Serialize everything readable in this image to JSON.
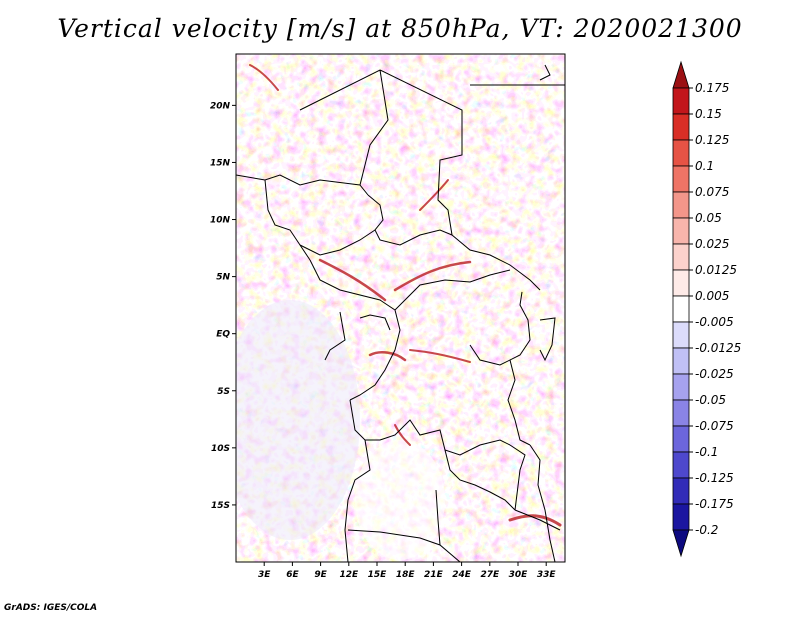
{
  "title": "Vertical velocity [m/s] at 850hPa, VT: 2020021300",
  "credit": "GrADS: IGES/COLA",
  "map": {
    "lat_labels": [
      "20N",
      "15N",
      "10N",
      "5N",
      "EQ",
      "5S",
      "10S",
      "15S"
    ],
    "lat_values": [
      20,
      15,
      10,
      5,
      0,
      -5,
      -10,
      -15
    ],
    "lon_labels": [
      "3E",
      "6E",
      "9E",
      "12E",
      "15E",
      "18E",
      "21E",
      "24E",
      "27E",
      "30E",
      "33E"
    ],
    "lon_values": [
      3,
      6,
      9,
      12,
      15,
      18,
      21,
      24,
      27,
      30,
      33
    ],
    "lon_range": [
      0,
      35
    ],
    "lat_range": [
      -20,
      24.5
    ]
  },
  "colorbar": {
    "labels": [
      "0.175",
      "0.15",
      "0.125",
      "0.1",
      "0.075",
      "0.05",
      "0.025",
      "0.0125",
      "0.005",
      "-0.005",
      "-0.0125",
      "-0.025",
      "-0.05",
      "-0.075",
      "-0.1",
      "-0.125",
      "-0.175",
      "-0.2"
    ],
    "colors": [
      "#9b1013",
      "#c2161b",
      "#d92e26",
      "#e65345",
      "#ee7466",
      "#f3968a",
      "#f8b5ac",
      "#fcd2cc",
      "#feebe8",
      "#ffffff",
      "#dcdcfb",
      "#c0c0f5",
      "#a6a2ee",
      "#8a84e6",
      "#6c66dc",
      "#4e48cd",
      "#322cb8",
      "#1b16a0",
      "#0d0a80"
    ]
  }
}
